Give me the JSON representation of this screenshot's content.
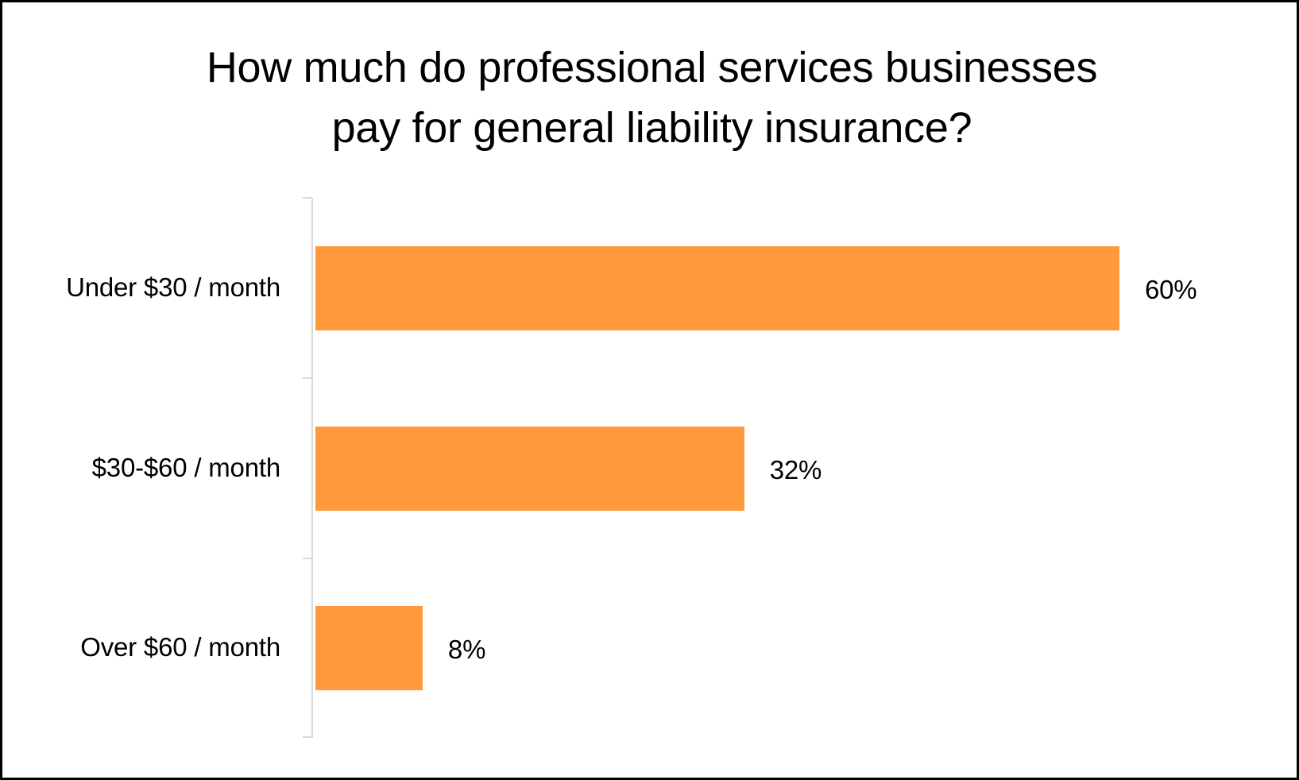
{
  "chart_data": {
    "type": "bar",
    "orientation": "horizontal",
    "title": "How much do professional services businesses pay for general liability insurance?",
    "title_lines": [
      "How much do professional services businesses",
      "pay for general liability insurance?"
    ],
    "categories": [
      "Under $30 / month",
      "$30-$60 / month",
      "Over $60 / month"
    ],
    "values": [
      60,
      32,
      8
    ],
    "value_labels": [
      "60%",
      "32%",
      "8%"
    ],
    "unit": "%",
    "xlabel": "",
    "ylabel": "",
    "xlim": [
      0,
      60
    ],
    "grid": false,
    "legend": null,
    "bar_color": "#FF993C",
    "axis_color": "#D9D9D9"
  }
}
